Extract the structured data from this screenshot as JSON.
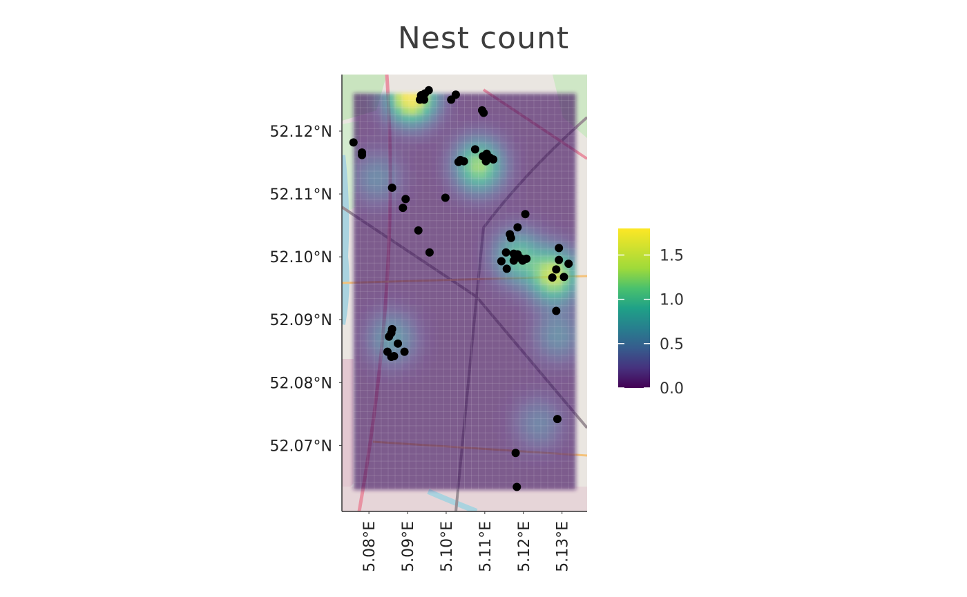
{
  "chart_data": {
    "type": "heatmap",
    "title": "Nest count",
    "xlabel": "",
    "ylabel": "",
    "x_range": [
      5.073,
      5.1365
    ],
    "y_range": [
      52.0595,
      52.129
    ],
    "x_ticks": [
      {
        "value": 5.08,
        "label": "5.08°E"
      },
      {
        "value": 5.09,
        "label": "5.09°E"
      },
      {
        "value": 5.1,
        "label": "5.10°E"
      },
      {
        "value": 5.11,
        "label": "5.11°E"
      },
      {
        "value": 5.12,
        "label": "5.12°E"
      },
      {
        "value": 5.13,
        "label": "5.13°E"
      }
    ],
    "y_ticks": [
      {
        "value": 52.12,
        "label": "52.12°N"
      },
      {
        "value": 52.11,
        "label": "52.11°N"
      },
      {
        "value": 52.1,
        "label": "52.10°N"
      },
      {
        "value": 52.09,
        "label": "52.09°N"
      },
      {
        "value": 52.08,
        "label": "52.08°N"
      },
      {
        "value": 52.07,
        "label": "52.07°N"
      }
    ],
    "grid": false,
    "basemap": "street map",
    "heatmap_extent": {
      "x": [
        5.076,
        5.1335
      ],
      "y": [
        52.063,
        52.126
      ]
    },
    "colorscale": "viridis",
    "legend": {
      "position": "right",
      "range": [
        0,
        1.8
      ],
      "ticks": [
        {
          "value": 0.0,
          "label": "0.0"
        },
        {
          "value": 0.5,
          "label": "0.5"
        },
        {
          "value": 1.0,
          "label": "1.0"
        },
        {
          "value": 1.5,
          "label": "1.5"
        }
      ]
    },
    "density_peaks": [
      {
        "x": 5.091,
        "y": 52.1255,
        "value": 1.8
      },
      {
        "x": 5.1085,
        "y": 52.1145,
        "value": 1.2
      },
      {
        "x": 5.128,
        "y": 52.097,
        "value": 1.4
      },
      {
        "x": 5.1185,
        "y": 52.1,
        "value": 0.9
      },
      {
        "x": 5.086,
        "y": 52.087,
        "value": 0.55
      },
      {
        "x": 5.082,
        "y": 52.1125,
        "value": 0.4
      },
      {
        "x": 5.129,
        "y": 52.0875,
        "value": 0.45
      },
      {
        "x": 5.124,
        "y": 52.0735,
        "value": 0.35
      }
    ],
    "points": [
      {
        "x": 5.0955,
        "y": 52.1265
      },
      {
        "x": 5.0945,
        "y": 52.126
      },
      {
        "x": 5.0938,
        "y": 52.1253
      },
      {
        "x": 5.0932,
        "y": 52.125
      },
      {
        "x": 5.0943,
        "y": 52.125
      },
      {
        "x": 5.0935,
        "y": 52.1257
      },
      {
        "x": 5.1025,
        "y": 52.1258
      },
      {
        "x": 5.1013,
        "y": 52.125
      },
      {
        "x": 5.1093,
        "y": 52.1233
      },
      {
        "x": 5.1097,
        "y": 52.1229
      },
      {
        "x": 5.076,
        "y": 52.1182
      },
      {
        "x": 5.0782,
        "y": 52.1166
      },
      {
        "x": 5.0782,
        "y": 52.1162
      },
      {
        "x": 5.1075,
        "y": 52.1171
      },
      {
        "x": 5.1095,
        "y": 52.116
      },
      {
        "x": 5.1105,
        "y": 52.1164
      },
      {
        "x": 5.1113,
        "y": 52.1158
      },
      {
        "x": 5.1122,
        "y": 52.1155
      },
      {
        "x": 5.1103,
        "y": 52.1152
      },
      {
        "x": 5.1037,
        "y": 52.1154
      },
      {
        "x": 5.1046,
        "y": 52.1152
      },
      {
        "x": 5.1032,
        "y": 52.1151
      },
      {
        "x": 5.086,
        "y": 52.111
      },
      {
        "x": 5.0895,
        "y": 52.1092
      },
      {
        "x": 5.0888,
        "y": 52.1078
      },
      {
        "x": 5.0998,
        "y": 52.1094
      },
      {
        "x": 5.0928,
        "y": 52.1042
      },
      {
        "x": 5.0957,
        "y": 52.1007
      },
      {
        "x": 5.1205,
        "y": 52.1068
      },
      {
        "x": 5.1185,
        "y": 52.1047
      },
      {
        "x": 5.1165,
        "y": 52.1036
      },
      {
        "x": 5.1168,
        "y": 52.103
      },
      {
        "x": 5.1155,
        "y": 52.1007
      },
      {
        "x": 5.1175,
        "y": 52.1005
      },
      {
        "x": 5.1185,
        "y": 52.1004
      },
      {
        "x": 5.1192,
        "y": 52.0998
      },
      {
        "x": 5.1202,
        "y": 52.0996
      },
      {
        "x": 5.1198,
        "y": 52.0994
      },
      {
        "x": 5.1208,
        "y": 52.0997
      },
      {
        "x": 5.1143,
        "y": 52.0993
      },
      {
        "x": 5.1175,
        "y": 52.0994
      },
      {
        "x": 5.1157,
        "y": 52.0981
      },
      {
        "x": 5.1292,
        "y": 52.1014
      },
      {
        "x": 5.1292,
        "y": 52.0995
      },
      {
        "x": 5.1317,
        "y": 52.0989
      },
      {
        "x": 5.1285,
        "y": 52.098
      },
      {
        "x": 5.1275,
        "y": 52.0967
      },
      {
        "x": 5.1305,
        "y": 52.0968
      },
      {
        "x": 5.1285,
        "y": 52.0914
      },
      {
        "x": 5.086,
        "y": 52.0885
      },
      {
        "x": 5.0858,
        "y": 52.0879
      },
      {
        "x": 5.0852,
        "y": 52.0873
      },
      {
        "x": 5.0875,
        "y": 52.0862
      },
      {
        "x": 5.0848,
        "y": 52.0849
      },
      {
        "x": 5.0892,
        "y": 52.0849
      },
      {
        "x": 5.0858,
        "y": 52.0841
      },
      {
        "x": 5.0865,
        "y": 52.0842
      },
      {
        "x": 5.1288,
        "y": 52.0742
      },
      {
        "x": 5.118,
        "y": 52.0688
      },
      {
        "x": 5.1183,
        "y": 52.0634
      }
    ]
  }
}
